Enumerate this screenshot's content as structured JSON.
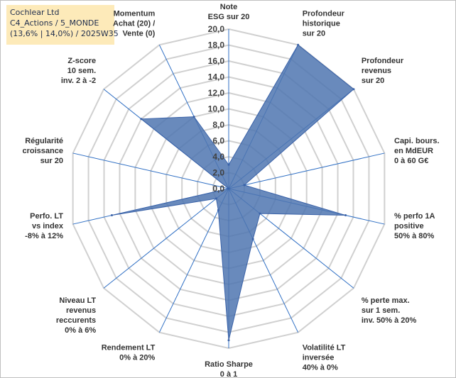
{
  "info": {
    "company": "Cochlear Ltd",
    "portfolio": "C4_Actions / 5_MONDE",
    "stats": "(13,6% | 14,0%) / 2025W35"
  },
  "chart_data": {
    "type": "radar",
    "title": "",
    "rlim": [
      0,
      20
    ],
    "ticks": [
      "0,0",
      "2,0",
      "4,0",
      "6,0",
      "8,0",
      "10,0",
      "12,0",
      "14,0",
      "16,0",
      "18,0",
      "20,0"
    ],
    "grid": true,
    "categories": [
      [
        "Note",
        "ESG sur 20"
      ],
      [
        "Profondeur",
        "historique",
        "sur 20"
      ],
      [
        "Profondeur",
        "revenus",
        "sur 20"
      ],
      [
        "Capi. bours.",
        "en MdEUR",
        "0 à 60 G€"
      ],
      [
        "% perfo 1A",
        "positive",
        "50% à 80%"
      ],
      [
        "% perte max.",
        "sur 1 sem.",
        "inv. 50% à 20%"
      ],
      [
        "Volatilité LT",
        "inversée",
        "40% à 0%"
      ],
      [
        "Ratio Sharpe",
        "0 à 1"
      ],
      [
        "Rendement LT",
        "0% à 20%"
      ],
      [
        "Niveau LT",
        "revenus",
        "reccurents",
        "0% à 6%"
      ],
      [
        "Perfo. LT",
        "vs index",
        "-8% à 12%"
      ],
      [
        "Régularité",
        "croissance",
        "sur 20"
      ],
      [
        "Z-score",
        "10 sem.",
        "inv. 2 à -2"
      ],
      [
        "Momentum",
        "Achat (20) /",
        "Vente (0)"
      ]
    ],
    "series": [
      {
        "values": [
          3,
          20,
          20,
          2,
          15,
          5,
          7,
          19,
          3,
          2,
          15,
          0,
          14,
          10
        ]
      }
    ],
    "colors": {
      "fill": "#4f75b0",
      "stroke": "#3a62a8",
      "grid": "#d0d0d0",
      "spoke": "#2f6fc4"
    }
  }
}
